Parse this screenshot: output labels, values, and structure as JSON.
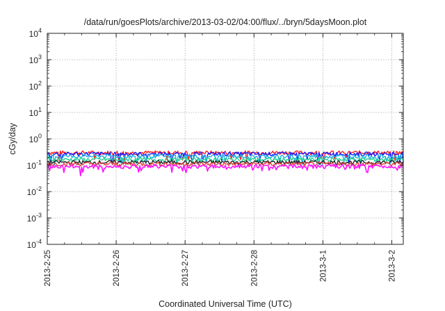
{
  "chart_data": {
    "type": "line",
    "title": "/data/run/goesPlots/archive/2013-03-02/04:00/flux/../bryn/5daysMoon.plot",
    "xlabel": "Coordinated Universal Time (UTC)",
    "ylabel": "cGy/day",
    "yscale": "log",
    "ylim": [
      0.0001,
      10000
    ],
    "y_ticks": [
      {
        "base": "10",
        "exp": "-4"
      },
      {
        "base": "10",
        "exp": "-3"
      },
      {
        "base": "10",
        "exp": "-2"
      },
      {
        "base": "10",
        "exp": "-1"
      },
      {
        "base": "10",
        "exp": "0"
      },
      {
        "base": "10",
        "exp": "1"
      },
      {
        "base": "10",
        "exp": "2"
      },
      {
        "base": "10",
        "exp": "3"
      },
      {
        "base": "10",
        "exp": "4"
      }
    ],
    "xlim": [
      "2013-02-25",
      "2013-03-02 04:00"
    ],
    "x_ticks": [
      "2013-2-25",
      "2013-2-26",
      "2013-2-27",
      "2013-2-28",
      "2013-3-1",
      "2013-3-2"
    ],
    "grid": true,
    "series": [
      {
        "color": "#ff1a1a",
        "mean": 0.3,
        "values_desc": "approx. 0.25–0.35 cGy/day"
      },
      {
        "color": "#1a1aff",
        "mean": 0.27,
        "values_desc": "approx. 0.15–0.32 cGy/day"
      },
      {
        "color": "#1ab0e0",
        "mean": 0.22,
        "values_desc": "approx. 0.12–0.30 cGy/day"
      },
      {
        "color": "#20d090",
        "mean": 0.165,
        "values_desc": "approx. 0.14–0.19 cGy/day"
      },
      {
        "color": "#222222",
        "mean": 0.13,
        "values_desc": "approx. 0.12–0.14 cGy/day"
      },
      {
        "color": "#e04040",
        "mean": 0.112,
        "values_desc": "approx. 0.10–0.12 cGy/day"
      },
      {
        "color": "#ff10ff",
        "mean": 0.09,
        "values_desc": "approx. 0.04–0.10 cGy/day"
      }
    ]
  }
}
